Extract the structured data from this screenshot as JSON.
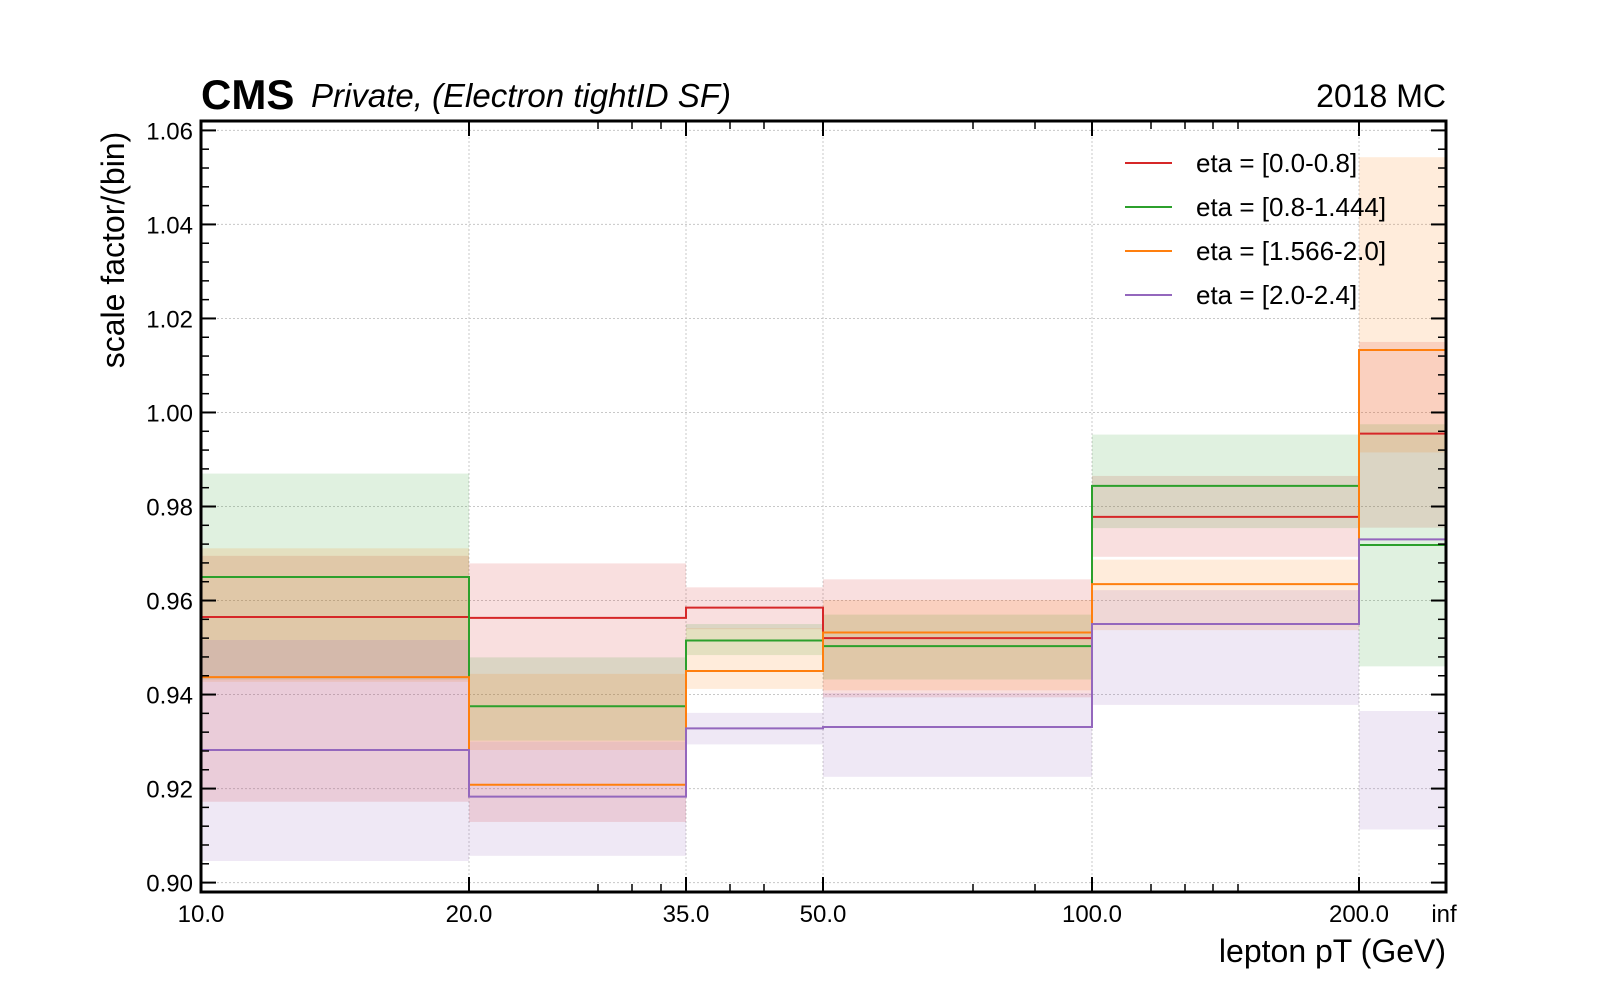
{
  "header": {
    "cms_label": "CMS",
    "subtitle": "Private, (Electron tightID SF)",
    "right_label": "2018 MC"
  },
  "chart_data": {
    "type": "step",
    "ylabel": "scale factor/(bin)",
    "xlabel": "lepton pT (GeV)",
    "ylim": [
      0.898,
      1.062
    ],
    "x_edges": [
      "10.0",
      "20.0",
      "35.0",
      "50.0",
      "100.0",
      "200.0",
      "inf"
    ],
    "y_ticks": [
      "0.90",
      "0.92",
      "0.94",
      "0.96",
      "0.98",
      "1.00",
      "1.02",
      "1.04",
      "1.06"
    ],
    "grid": true,
    "legend_position": "top-right",
    "series": [
      {
        "name": "eta = [0.0-0.8]",
        "color": "#d62728",
        "values": [
          0.9565,
          0.9563,
          0.9585,
          0.952,
          0.9778,
          0.9955
        ],
        "band_low": [
          0.9172,
          0.9129,
          0.9539,
          0.9394,
          0.9693,
          0.9755
        ],
        "band_high": [
          0.9695,
          0.9679,
          0.9628,
          0.9645,
          0.9865,
          1.015
        ]
      },
      {
        "name": "eta = [0.8-1.444]",
        "color": "#2ca02c",
        "values": [
          0.965,
          0.9375,
          0.9515,
          0.9503,
          0.9844,
          0.9718
        ],
        "band_low": [
          0.9432,
          0.9302,
          0.9484,
          0.9432,
          0.9754,
          0.946
        ],
        "band_high": [
          0.987,
          0.9479,
          0.955,
          0.957,
          0.9953,
          0.9975
        ]
      },
      {
        "name": "eta = [1.566-2.0]",
        "color": "#ff7f0e",
        "values": [
          0.9437,
          0.9208,
          0.945,
          0.9532,
          0.9635,
          1.0133
        ],
        "band_low": [
          0.9427,
          0.9282,
          0.9412,
          0.9409,
          0.9537,
          0.9915
        ],
        "band_high": [
          0.9711,
          0.9444,
          0.9541,
          0.9601,
          0.9687,
          1.0543
        ]
      },
      {
        "name": "eta = [2.0-2.4]",
        "color": "#9467bd",
        "values": [
          0.9282,
          0.9183,
          0.9328,
          0.9331,
          0.955,
          0.973
        ],
        "band_low": [
          0.9046,
          0.9057,
          0.9294,
          0.9225,
          0.9378,
          0.9113
        ],
        "band_high": [
          0.9516,
          0.93,
          0.9361,
          0.9403,
          0.9622,
          0.9365
        ]
      }
    ]
  }
}
